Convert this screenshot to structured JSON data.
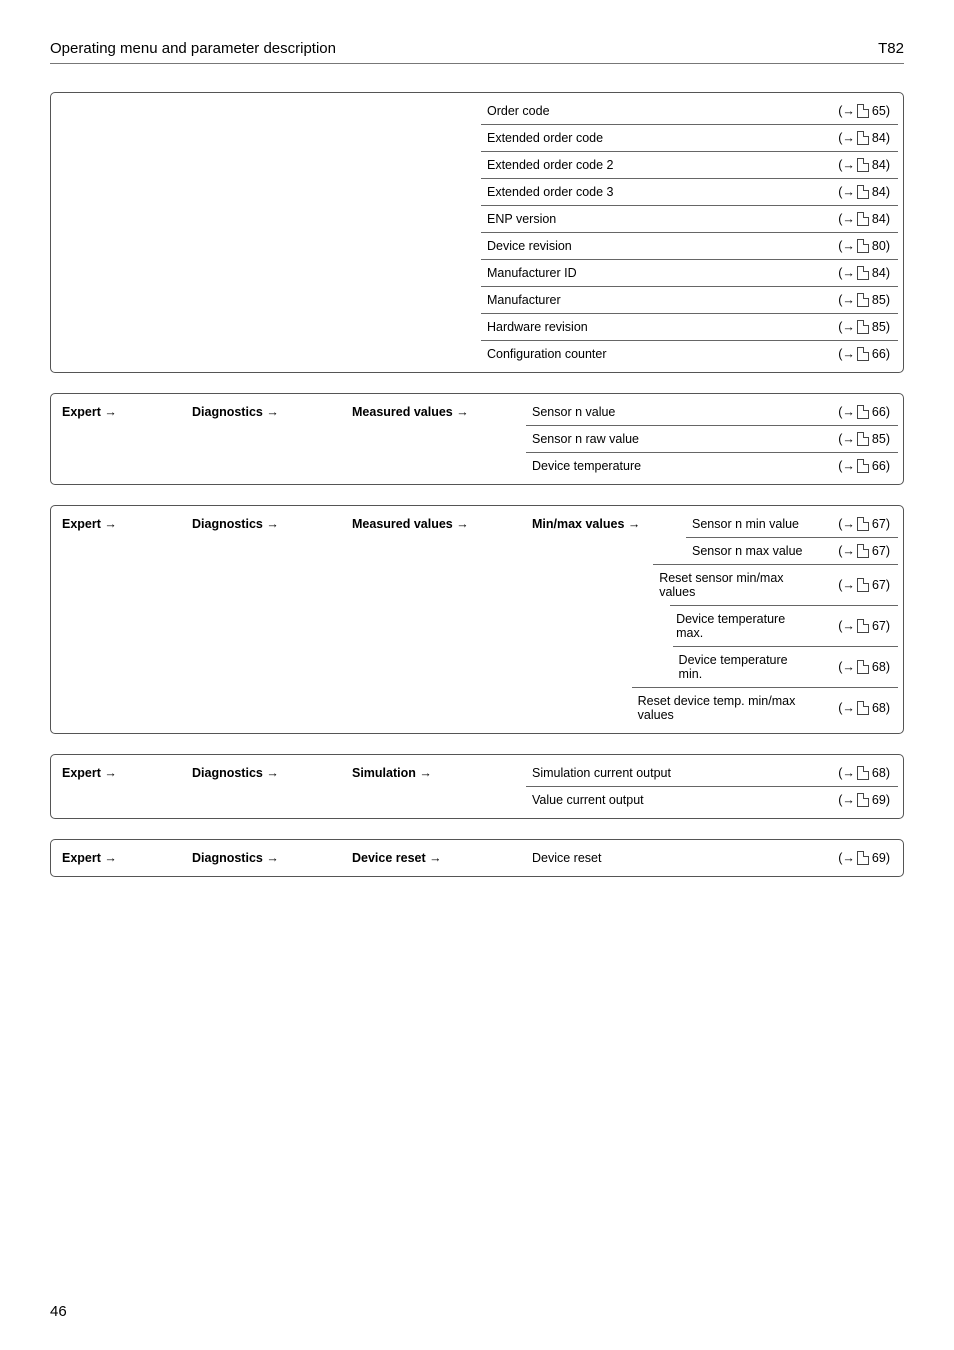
{
  "header": {
    "section_title": "Operating menu and parameter description",
    "doc_code": "T82"
  },
  "footer": {
    "page_number": "46"
  },
  "tables": {
    "device_info_tail": {
      "rows": [
        {
          "label": "Order code",
          "page": "65"
        },
        {
          "label": "Extended order code",
          "page": "84"
        },
        {
          "label": "Extended order code 2",
          "page": "84"
        },
        {
          "label": "Extended order code 3",
          "page": "84"
        },
        {
          "label": "ENP version",
          "page": "84"
        },
        {
          "label": "Device revision",
          "page": "80"
        },
        {
          "label": "Manufacturer ID",
          "page": "84"
        },
        {
          "label": "Manufacturer",
          "page": "85"
        },
        {
          "label": "Hardware revision",
          "page": "85"
        },
        {
          "label": "Configuration counter",
          "page": "66"
        }
      ]
    },
    "measured_values": {
      "bc": [
        "Expert →",
        "Diagnostics →",
        "Measured values →"
      ],
      "rows": [
        {
          "label": "Sensor n value",
          "page": "66"
        },
        {
          "label": "Sensor n raw value",
          "page": "85"
        },
        {
          "label": "Device temperature",
          "page": "66"
        }
      ]
    },
    "min_max": {
      "bc": [
        "Expert →",
        "Diagnostics →",
        "Measured values →",
        "Min/max values →"
      ],
      "rows": [
        {
          "label": "Sensor n min value",
          "page": "67"
        },
        {
          "label": "Sensor n max value",
          "page": "67"
        },
        {
          "label": "Reset sensor min/max values",
          "page": "67"
        },
        {
          "label": "Device temperature max.",
          "page": "67"
        },
        {
          "label": "Device temperature min.",
          "page": "68"
        },
        {
          "label": "Reset device temp. min/max values",
          "page": "68"
        }
      ]
    },
    "simulation": {
      "bc": [
        "Expert →",
        "Diagnostics →",
        "Simulation →"
      ],
      "rows": [
        {
          "label": "Simulation current output",
          "page": "68"
        },
        {
          "label": "Value current output",
          "page": "69"
        }
      ]
    },
    "device_reset": {
      "bc": [
        "Expert →",
        "Diagnostics →",
        "Device reset →"
      ],
      "rows": [
        {
          "label": "Device reset",
          "page": "69"
        }
      ]
    }
  }
}
